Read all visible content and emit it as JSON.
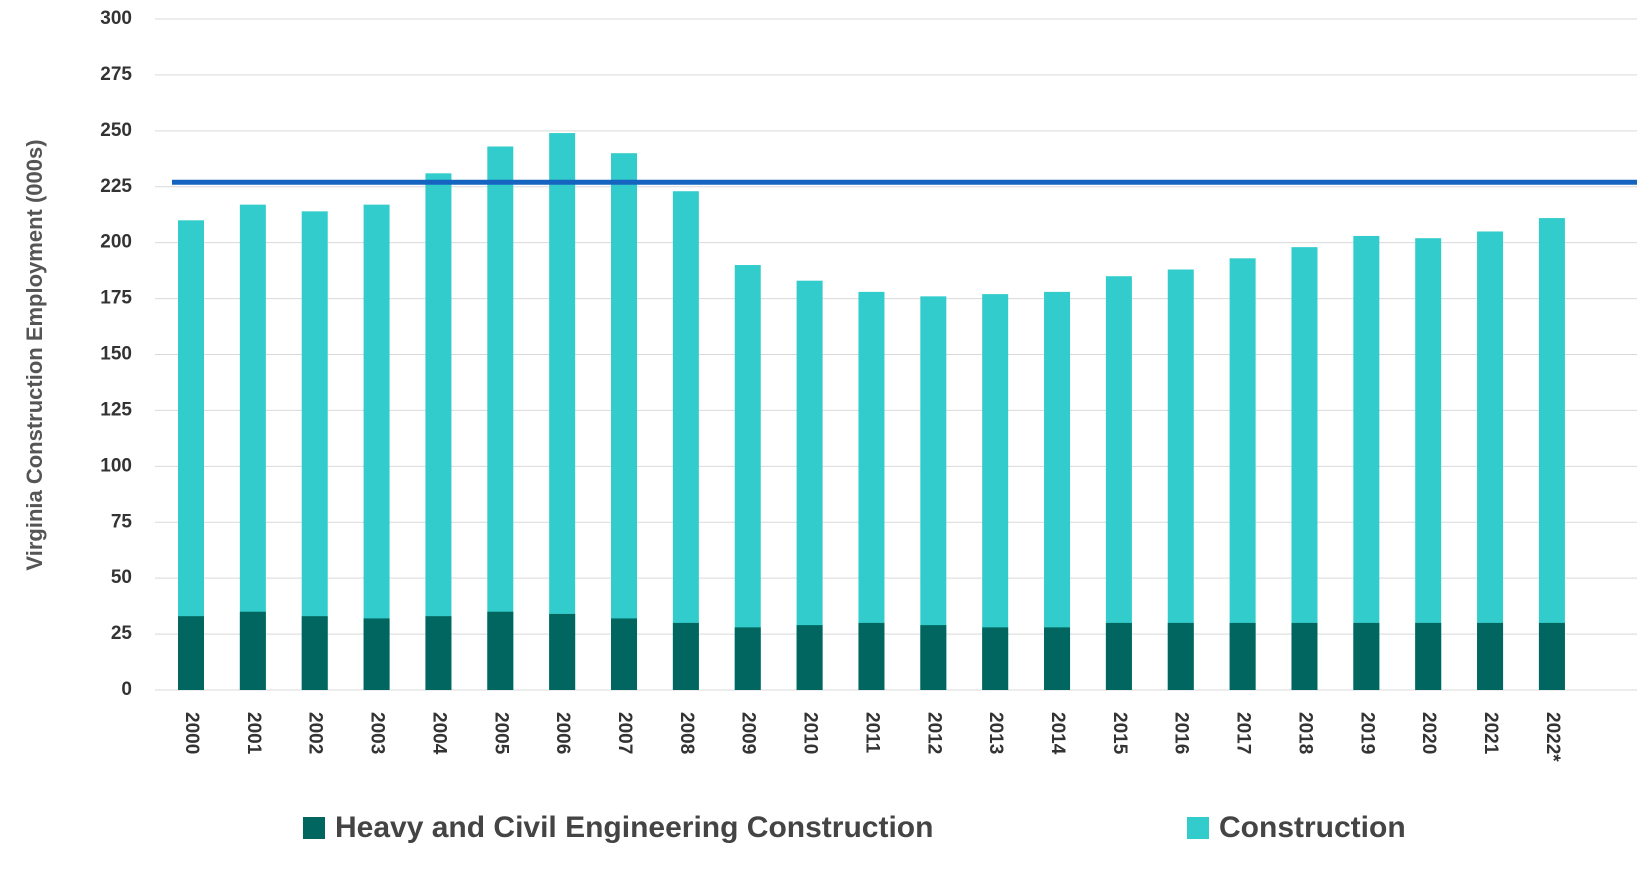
{
  "chart_data": {
    "type": "bar",
    "ylabel": "Virginia Construction Employment (000s)",
    "categories": [
      "2000",
      "2001",
      "2002",
      "2003",
      "2004",
      "2005",
      "2006",
      "2007",
      "2008",
      "2009",
      "2010",
      "2011",
      "2012",
      "2013",
      "2014",
      "2015",
      "2016",
      "2017",
      "2018",
      "2019",
      "2020",
      "2021",
      "2022*"
    ],
    "series": [
      {
        "name": "Construction",
        "color": "#33cccc",
        "values": [
          210,
          217,
          214,
          217,
          231,
          243,
          249,
          240,
          223,
          190,
          183,
          178,
          176,
          177,
          178,
          185,
          188,
          193,
          198,
          203,
          202,
          205,
          211
        ]
      },
      {
        "name": "Heavy and Civil Engineering Construction",
        "color": "#00665f",
        "values": [
          33,
          35,
          33,
          32,
          33,
          35,
          34,
          32,
          30,
          28,
          29,
          30,
          29,
          28,
          28,
          30,
          30,
          30,
          30,
          30,
          30,
          30,
          30
        ]
      }
    ],
    "reference_line": {
      "value": 227,
      "color": "#1565c0"
    },
    "ylim": [
      0,
      300
    ],
    "yticks": [
      0,
      25,
      50,
      75,
      100,
      125,
      150,
      175,
      200,
      225,
      250,
      275,
      300
    ],
    "grid": true
  }
}
